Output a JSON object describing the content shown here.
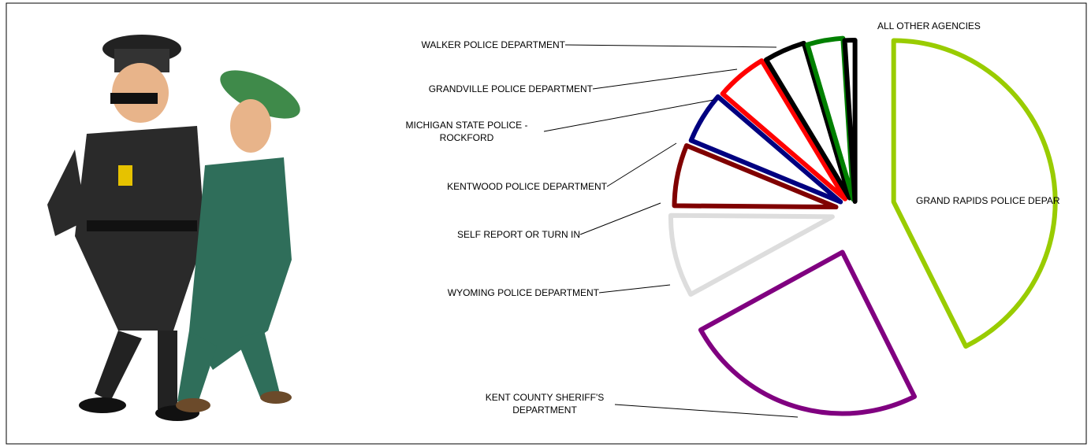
{
  "chart_data": {
    "type": "pie",
    "categories": [
      "GRAND RAPIDS POLICE DEPAR",
      "KENT COUNTY SHERIFF'S DEPARTMENT",
      "WYOMING POLICE DEPARTMENT",
      "SELF REPORT OR TURN IN",
      "KENTWOOD POLICE DEPARTMENT",
      "MICHIGAN STATE POLICE - ROCKFORD",
      "GRANDVILLE POLICE DEPARTMENT",
      "WALKER POLICE DEPARTMENT",
      "ALL OTHER AGENCIES"
    ],
    "values": [
      42,
      24,
      8,
      6,
      5,
      5,
      4,
      3.5,
      1
    ],
    "colors": [
      "#99cc00",
      "#800080",
      "#dddddd",
      "#800000",
      "#000080",
      "#ff0000",
      "#000000",
      "#008000",
      "#000000"
    ]
  }
}
